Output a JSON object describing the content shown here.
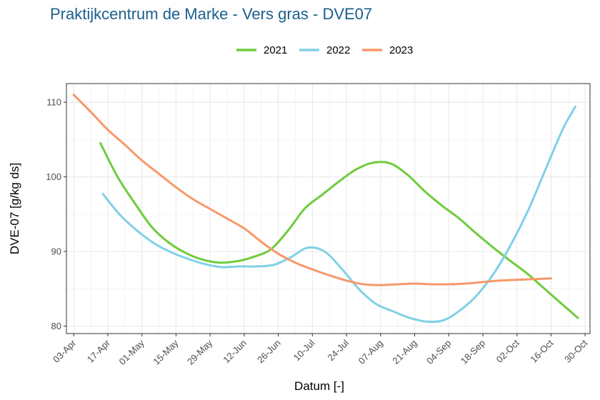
{
  "colors": {
    "title": "#1b5f8c",
    "grid_major": "#ebebeb",
    "grid_minor": "#f5f5f5",
    "panel_border": "#333333",
    "tick_text": "#4d4d4d"
  },
  "chart_data": {
    "type": "line",
    "title": "Praktijkcentrum de Marke - Vers gras - DVE07",
    "xlabel": "Datum [-]",
    "ylabel": "DVE-07 [g/kg ds]",
    "x_tick_labels": [
      "03-Apr",
      "17-Apr",
      "01-May",
      "15-May",
      "29-May",
      "12-Jun",
      "26-Jun",
      "10-Jul",
      "24-Jul",
      "07-Aug",
      "21-Aug",
      "04-Sep",
      "18-Sep",
      "02-Oct",
      "16-Oct",
      "30-Oct"
    ],
    "y_ticks": [
      80,
      90,
      100,
      110
    ],
    "ylim": [
      79,
      112.5
    ],
    "xlim_days": [
      -3,
      212
    ],
    "grid": true,
    "legend_position": "top",
    "series": [
      {
        "name": "2021",
        "color": "#6fcc3c",
        "points": [
          [
            "14-Apr",
            104.5
          ],
          [
            "21-Apr",
            100.0
          ],
          [
            "28-Apr",
            96.5
          ],
          [
            "05-May",
            93.3
          ],
          [
            "12-May",
            91.2
          ],
          [
            "19-May",
            89.8
          ],
          [
            "26-May",
            88.9
          ],
          [
            "02-Jun",
            88.5
          ],
          [
            "09-Jun",
            88.7
          ],
          [
            "16-Jun",
            89.3
          ],
          [
            "23-Jun",
            90.3
          ],
          [
            "30-Jun",
            92.8
          ],
          [
            "07-Jul",
            95.8
          ],
          [
            "14-Jul",
            97.6
          ],
          [
            "21-Jul",
            99.4
          ],
          [
            "28-Jul",
            101.0
          ],
          [
            "04-Aug",
            101.9
          ],
          [
            "11-Aug",
            101.8
          ],
          [
            "18-Aug",
            100.3
          ],
          [
            "25-Aug",
            98.1
          ],
          [
            "01-Sep",
            96.2
          ],
          [
            "08-Sep",
            94.5
          ],
          [
            "15-Sep",
            92.5
          ],
          [
            "22-Sep",
            90.6
          ],
          [
            "29-Sep",
            88.8
          ],
          [
            "06-Oct",
            87.1
          ],
          [
            "13-Oct",
            85.1
          ],
          [
            "20-Oct",
            83.1
          ],
          [
            "27-Oct",
            81.1
          ]
        ]
      },
      {
        "name": "2022",
        "color": "#80d0e6",
        "points": [
          [
            "15-Apr",
            97.7
          ],
          [
            "22-Apr",
            94.9
          ],
          [
            "29-Apr",
            92.8
          ],
          [
            "06-May",
            91.1
          ],
          [
            "13-May",
            89.9
          ],
          [
            "20-May",
            89.0
          ],
          [
            "27-May",
            88.3
          ],
          [
            "03-Jun",
            87.9
          ],
          [
            "10-Jun",
            88.0
          ],
          [
            "17-Jun",
            88.0
          ],
          [
            "24-Jun",
            88.2
          ],
          [
            "01-Jul",
            89.2
          ],
          [
            "08-Jul",
            90.5
          ],
          [
            "15-Jul",
            90.0
          ],
          [
            "22-Jul",
            87.7
          ],
          [
            "29-Jul",
            85.0
          ],
          [
            "05-Aug",
            83.0
          ],
          [
            "12-Aug",
            82.0
          ],
          [
            "19-Aug",
            81.1
          ],
          [
            "26-Aug",
            80.6
          ],
          [
            "02-Sep",
            80.8
          ],
          [
            "09-Sep",
            82.2
          ],
          [
            "16-Sep",
            84.3
          ],
          [
            "23-Sep",
            87.3
          ],
          [
            "30-Sep",
            91.2
          ],
          [
            "07-Oct",
            95.8
          ],
          [
            "14-Oct",
            101.2
          ],
          [
            "21-Oct",
            106.5
          ],
          [
            "26-Oct",
            109.4
          ]
        ]
      },
      {
        "name": "2023",
        "color": "#f7986a",
        "points": [
          [
            "03-Apr",
            111.0
          ],
          [
            "10-Apr",
            108.7
          ],
          [
            "17-Apr",
            106.3
          ],
          [
            "24-Apr",
            104.3
          ],
          [
            "01-May",
            102.2
          ],
          [
            "08-May",
            100.4
          ],
          [
            "15-May",
            98.6
          ],
          [
            "22-May",
            97.0
          ],
          [
            "29-May",
            95.7
          ],
          [
            "05-Jun",
            94.4
          ],
          [
            "12-Jun",
            93.1
          ],
          [
            "19-Jun",
            91.3
          ],
          [
            "26-Jun",
            89.7
          ],
          [
            "03-Jul",
            88.5
          ],
          [
            "10-Jul",
            87.6
          ],
          [
            "17-Jul",
            86.8
          ],
          [
            "24-Jul",
            86.1
          ],
          [
            "31-Jul",
            85.6
          ],
          [
            "07-Aug",
            85.5
          ],
          [
            "14-Aug",
            85.6
          ],
          [
            "21-Aug",
            85.7
          ],
          [
            "28-Aug",
            85.6
          ],
          [
            "04-Sep",
            85.6
          ],
          [
            "11-Sep",
            85.7
          ],
          [
            "18-Sep",
            85.9
          ],
          [
            "25-Sep",
            86.1
          ],
          [
            "02-Oct",
            86.2
          ],
          [
            "09-Oct",
            86.3
          ],
          [
            "16-Oct",
            86.4
          ]
        ]
      }
    ]
  }
}
